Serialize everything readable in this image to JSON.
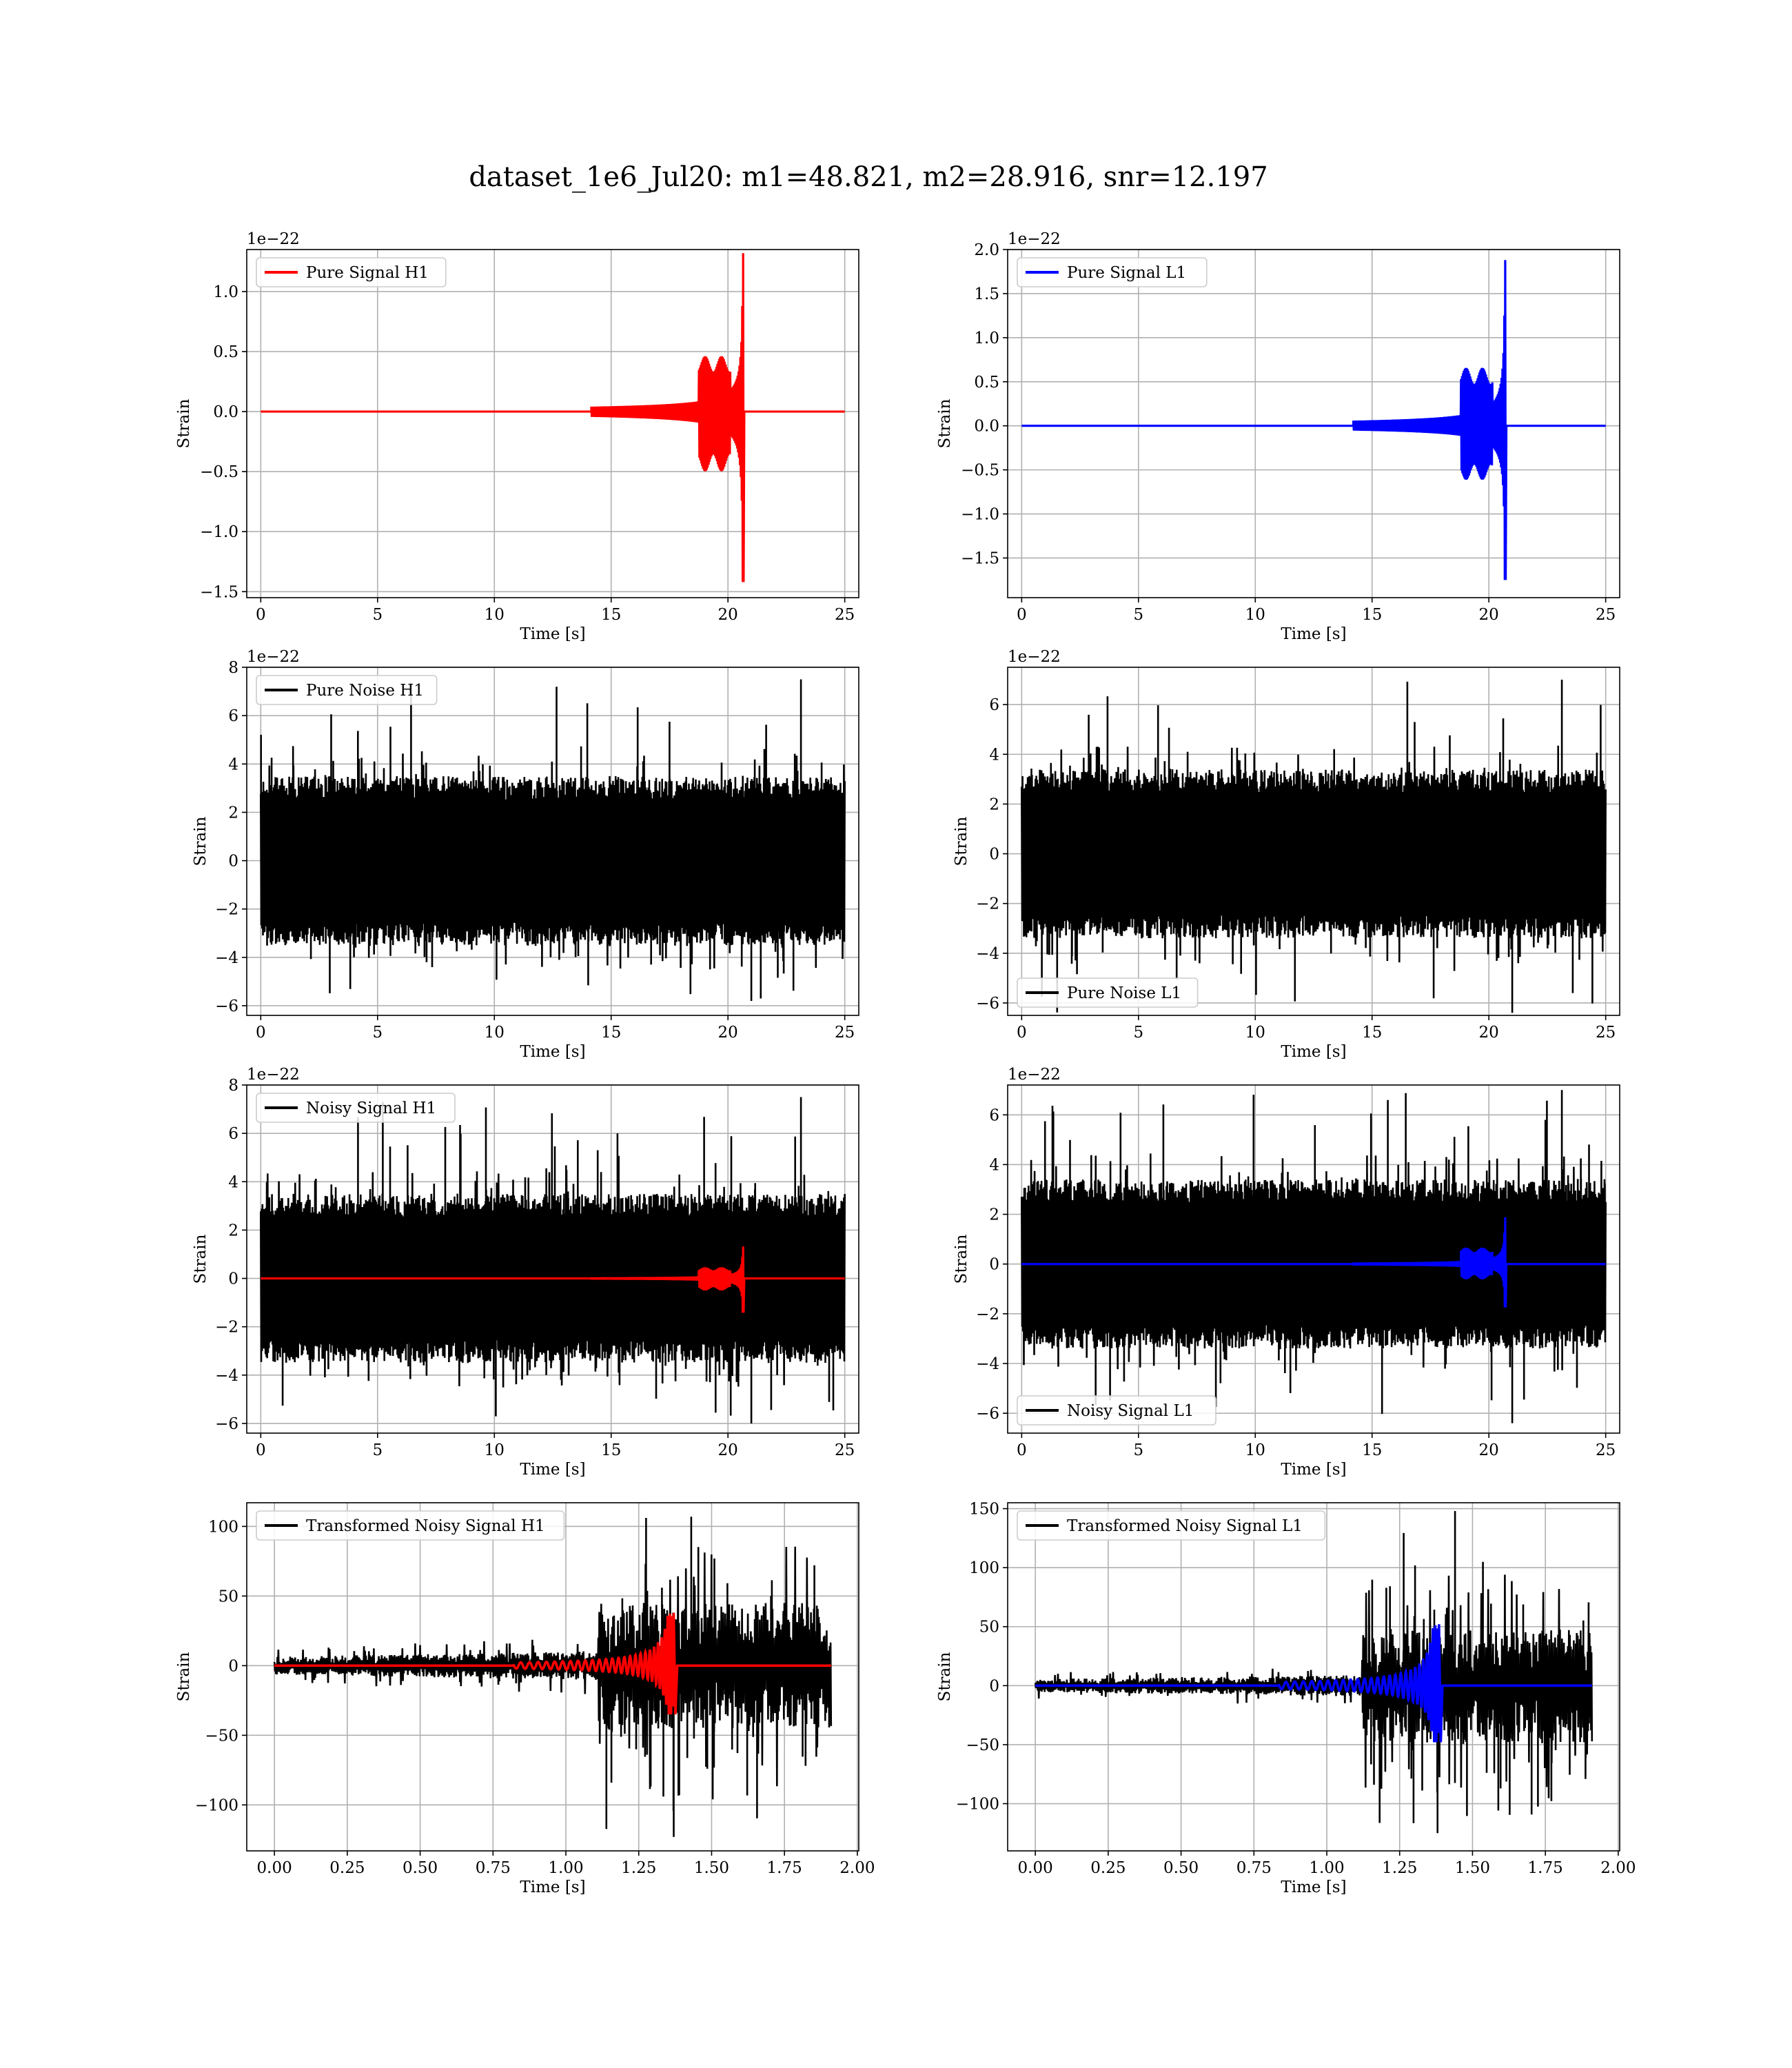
{
  "figure": {
    "title": "dataset_1e6_Jul20: m1=48.821, m2=28.916, snr=12.197"
  },
  "chart_data": [
    {
      "type": "line",
      "id": "pure-signal-h1",
      "xlabel": "Time [s]",
      "ylabel": "Strain",
      "offset_label": "1e−22",
      "xlim": [
        -0.6,
        25.6
      ],
      "ylim": [
        -1.55,
        1.35
      ],
      "xticks": [
        0,
        5,
        10,
        15,
        20,
        25
      ],
      "xtick_labels": [
        "0",
        "5",
        "10",
        "15",
        "20",
        "25"
      ],
      "yticks": [
        1.0,
        0.5,
        0.0,
        -0.5,
        -1.0,
        -1.5
      ],
      "ytick_labels": [
        "1.0",
        "0.5",
        "0.0",
        "−0.5",
        "−1.0",
        "−1.5"
      ],
      "grid": true,
      "legend_position": "upper-left",
      "series": [
        {
          "name": "Pure Signal H1",
          "color": "#ff0000",
          "kind": "chirp",
          "duration": 25,
          "merger_time": 20.65,
          "start": 0.0,
          "end": 25.0,
          "baseline": 0,
          "peak_pos": 1.32,
          "peak_neg": -1.42
        }
      ]
    },
    {
      "type": "line",
      "id": "pure-signal-l1",
      "xlabel": "Time [s]",
      "ylabel": "Strain",
      "offset_label": "1e−22",
      "xlim": [
        -0.6,
        25.6
      ],
      "ylim": [
        -1.95,
        2.0
      ],
      "xticks": [
        0,
        5,
        10,
        15,
        20,
        25
      ],
      "xtick_labels": [
        "0",
        "5",
        "10",
        "15",
        "20",
        "25"
      ],
      "yticks": [
        2.0,
        1.5,
        1.0,
        0.5,
        0.0,
        -0.5,
        -1.0,
        -1.5
      ],
      "ytick_labels": [
        "2.0",
        "1.5",
        "1.0",
        "0.5",
        "0.0",
        "−0.5",
        "−1.0",
        "−1.5"
      ],
      "grid": true,
      "legend_position": "upper-left",
      "series": [
        {
          "name": "Pure Signal L1",
          "color": "#0000ff",
          "kind": "chirp",
          "duration": 25,
          "merger_time": 20.7,
          "start": 0.0,
          "end": 25.0,
          "baseline": 0,
          "peak_pos": 1.88,
          "peak_neg": -1.75
        }
      ]
    },
    {
      "type": "line",
      "id": "pure-noise-h1",
      "xlabel": "Time [s]",
      "ylabel": "Strain",
      "offset_label": "1e−22",
      "xlim": [
        -0.6,
        25.6
      ],
      "ylim": [
        -6.4,
        8.0
      ],
      "xticks": [
        0,
        5,
        10,
        15,
        20,
        25
      ],
      "xtick_labels": [
        "0",
        "5",
        "10",
        "15",
        "20",
        "25"
      ],
      "yticks": [
        8,
        6,
        4,
        2,
        0,
        -2,
        -4,
        -6
      ],
      "ytick_labels": [
        "8",
        "6",
        "4",
        "2",
        "0",
        "−2",
        "−4",
        "−6"
      ],
      "grid": true,
      "legend_position": "upper-left",
      "series": [
        {
          "name": "Pure Noise H1",
          "color": "#000000",
          "kind": "noise",
          "start": 0.0,
          "end": 25.0,
          "band": 3.5,
          "spike_max": 7.5,
          "spike_min": -5.8,
          "seed": 11
        }
      ]
    },
    {
      "type": "line",
      "id": "pure-noise-l1",
      "xlabel": "Time [s]",
      "ylabel": "Strain",
      "offset_label": "1e−22",
      "xlim": [
        -0.6,
        25.6
      ],
      "ylim": [
        -6.5,
        7.5
      ],
      "xticks": [
        0,
        5,
        10,
        15,
        20,
        25
      ],
      "xtick_labels": [
        "0",
        "5",
        "10",
        "15",
        "20",
        "25"
      ],
      "yticks": [
        6,
        4,
        2,
        0,
        -2,
        -4,
        -6
      ],
      "ytick_labels": [
        "6",
        "4",
        "2",
        "0",
        "−2",
        "−4",
        "−6"
      ],
      "grid": true,
      "legend_position": "lower-left",
      "series": [
        {
          "name": "Pure Noise L1",
          "color": "#000000",
          "kind": "noise",
          "start": 0.0,
          "end": 25.0,
          "band": 3.4,
          "spike_max": 7.0,
          "spike_min": -6.4,
          "seed": 23
        }
      ]
    },
    {
      "type": "line",
      "id": "noisy-signal-h1",
      "xlabel": "Time [s]",
      "ylabel": "Strain",
      "offset_label": "1e−22",
      "xlim": [
        -0.6,
        25.6
      ],
      "ylim": [
        -6.4,
        8.0
      ],
      "xticks": [
        0,
        5,
        10,
        15,
        20,
        25
      ],
      "xtick_labels": [
        "0",
        "5",
        "10",
        "15",
        "20",
        "25"
      ],
      "yticks": [
        8,
        6,
        4,
        2,
        0,
        -2,
        -4,
        -6
      ],
      "ytick_labels": [
        "8",
        "6",
        "4",
        "2",
        "0",
        "−2",
        "−4",
        "−6"
      ],
      "grid": true,
      "legend_position": "upper-left",
      "series": [
        {
          "name": "Noisy Signal H1",
          "color": "#000000",
          "kind": "noise",
          "start": 0.0,
          "end": 25.0,
          "band": 3.5,
          "spike_max": 7.5,
          "spike_min": -6.0,
          "seed": 11
        },
        {
          "name": "",
          "color": "#ff0000",
          "kind": "chirp",
          "duration": 25,
          "merger_time": 20.65,
          "start": 0.0,
          "end": 25.0,
          "baseline": 0,
          "peak_pos": 1.32,
          "peak_neg": -1.42
        }
      ]
    },
    {
      "type": "line",
      "id": "noisy-signal-l1",
      "xlabel": "Time [s]",
      "ylabel": "Strain",
      "offset_label": "1e−22",
      "xlim": [
        -0.6,
        25.6
      ],
      "ylim": [
        -6.8,
        7.2
      ],
      "xticks": [
        0,
        5,
        10,
        15,
        20,
        25
      ],
      "xtick_labels": [
        "0",
        "5",
        "10",
        "15",
        "20",
        "25"
      ],
      "yticks": [
        6,
        4,
        2,
        0,
        -2,
        -4,
        -6
      ],
      "ytick_labels": [
        "6",
        "4",
        "2",
        "0",
        "−2",
        "−4",
        "−6"
      ],
      "grid": true,
      "legend_position": "lower-left",
      "series": [
        {
          "name": "Noisy Signal L1",
          "color": "#000000",
          "kind": "noise",
          "start": 0.0,
          "end": 25.0,
          "band": 3.4,
          "spike_max": 7.0,
          "spike_min": -6.4,
          "seed": 23
        },
        {
          "name": "",
          "color": "#0000ff",
          "kind": "chirp",
          "duration": 25,
          "merger_time": 20.7,
          "start": 0.0,
          "end": 25.0,
          "baseline": 0,
          "peak_pos": 1.88,
          "peak_neg": -1.75
        }
      ]
    },
    {
      "type": "line",
      "id": "transformed-noisy-signal-h1",
      "xlabel": "Time [s]",
      "ylabel": "Strain",
      "offset_label": "",
      "xlim": [
        -0.095,
        2.005
      ],
      "ylim": [
        -133,
        117
      ],
      "xticks": [
        0.0,
        0.25,
        0.5,
        0.75,
        1.0,
        1.25,
        1.5,
        1.75,
        2.0
      ],
      "xtick_labels": [
        "0.00",
        "0.25",
        "0.50",
        "0.75",
        "1.00",
        "1.25",
        "1.50",
        "1.75",
        "2.00"
      ],
      "yticks": [
        100,
        50,
        0,
        -50,
        -100
      ],
      "ytick_labels": [
        "100",
        "50",
        "0",
        "−50",
        "−100"
      ],
      "grid": true,
      "legend_position": "upper-left",
      "series": [
        {
          "name": "Transformed Noisy Signal H1",
          "color": "#000000",
          "kind": "tnoise",
          "start": 0.0,
          "end": 1.91,
          "step_time": 1.11,
          "low_band": 8,
          "high_band": 45,
          "spike_max": 107,
          "spike_min": -123,
          "seed": 37
        },
        {
          "name": "",
          "color": "#ff0000",
          "kind": "tchirp",
          "start": 0.0,
          "end": 1.91,
          "merger_time": 1.37,
          "baseline": 0,
          "peak_pos": 38,
          "peak_neg": -35
        }
      ]
    },
    {
      "type": "line",
      "id": "transformed-noisy-signal-l1",
      "xlabel": "Time [s]",
      "ylabel": "Strain",
      "offset_label": "",
      "xlim": [
        -0.095,
        2.005
      ],
      "ylim": [
        -140,
        155
      ],
      "xticks": [
        0.0,
        0.25,
        0.5,
        0.75,
        1.0,
        1.25,
        1.5,
        1.75,
        2.0
      ],
      "xtick_labels": [
        "0.00",
        "0.25",
        "0.50",
        "0.75",
        "1.00",
        "1.25",
        "1.50",
        "1.75",
        "2.00"
      ],
      "yticks": [
        150,
        100,
        50,
        0,
        -50,
        -100
      ],
      "ytick_labels": [
        "150",
        "100",
        "50",
        "0",
        "−50",
        "−100"
      ],
      "grid": true,
      "legend_position": "upper-left",
      "series": [
        {
          "name": "Transformed Noisy Signal L1",
          "color": "#000000",
          "kind": "tnoise",
          "start": 0.0,
          "end": 1.91,
          "step_time": 1.12,
          "low_band": 7,
          "high_band": 48,
          "spike_max": 148,
          "spike_min": -125,
          "seed": 41
        },
        {
          "name": "",
          "color": "#0000ff",
          "kind": "tchirp",
          "start": 0.0,
          "end": 1.91,
          "merger_time": 1.385,
          "baseline": 0,
          "peak_pos": 52,
          "peak_neg": -48
        }
      ]
    }
  ]
}
